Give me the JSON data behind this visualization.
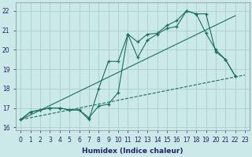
{
  "xlabel": "Humidex (Indice chaleur)",
  "bg_color": "#cce9e9",
  "grid_color": "#aacfcf",
  "line_color": "#1a6e60",
  "xlim": [
    -0.5,
    23.5
  ],
  "ylim": [
    15.85,
    22.45
  ],
  "yticks": [
    16,
    17,
    18,
    19,
    20,
    21,
    22
  ],
  "xticks": [
    0,
    1,
    2,
    3,
    4,
    5,
    6,
    7,
    8,
    9,
    10,
    11,
    12,
    13,
    14,
    15,
    16,
    17,
    18,
    19,
    20,
    21,
    22,
    23
  ],
  "line1_x": [
    0,
    1,
    2,
    3,
    4,
    5,
    6,
    7,
    8,
    9,
    10,
    11,
    12,
    13,
    14,
    15,
    16,
    17,
    18,
    19,
    20,
    21,
    22
  ],
  "line1_y": [
    16.4,
    16.8,
    16.9,
    17.0,
    17.0,
    16.9,
    16.9,
    16.4,
    18.0,
    19.4,
    19.4,
    20.8,
    19.6,
    20.5,
    20.8,
    21.1,
    21.2,
    22.0,
    21.85,
    20.85,
    20.0,
    19.5,
    18.65
  ],
  "line2_x": [
    0,
    1,
    2,
    3,
    4,
    5,
    6,
    7,
    8,
    9,
    10,
    11,
    12,
    13,
    14,
    15,
    16,
    17,
    18,
    19,
    20,
    21,
    22
  ],
  "line2_y": [
    16.4,
    16.8,
    16.9,
    17.0,
    17.0,
    16.9,
    16.9,
    16.5,
    17.1,
    17.2,
    17.8,
    20.8,
    20.4,
    20.8,
    20.85,
    21.25,
    21.5,
    22.0,
    21.85,
    21.85,
    19.9,
    19.5,
    18.65
  ],
  "line3_x": [
    0,
    22
  ],
  "line3_y": [
    16.4,
    21.75
  ],
  "line4_x": [
    0,
    23
  ],
  "line4_y": [
    16.4,
    18.7
  ],
  "xlabel_color": "#222266",
  "xlabel_fontsize": 6.5,
  "tick_fontsize": 5.5
}
